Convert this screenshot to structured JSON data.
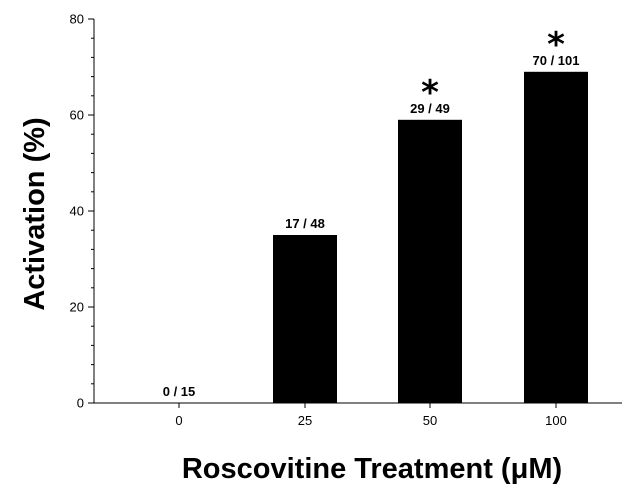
{
  "chart_data": {
    "type": "bar",
    "title": "",
    "xlabel": "Roscovitine Treatment (μM)",
    "ylabel": "Activation (%)",
    "categories": [
      "0",
      "25",
      "50",
      "100"
    ],
    "values": [
      0,
      35,
      59,
      69
    ],
    "data_labels": [
      "0 / 15",
      "17 / 48",
      "29 / 49",
      "70 / 101"
    ],
    "significance": [
      "",
      "",
      "*",
      "*"
    ],
    "ylim": [
      0,
      80
    ],
    "yticks": [
      "0",
      "20",
      "40",
      "60",
      "80"
    ],
    "grid": false,
    "legend": "none",
    "bar_color": "#000000"
  }
}
